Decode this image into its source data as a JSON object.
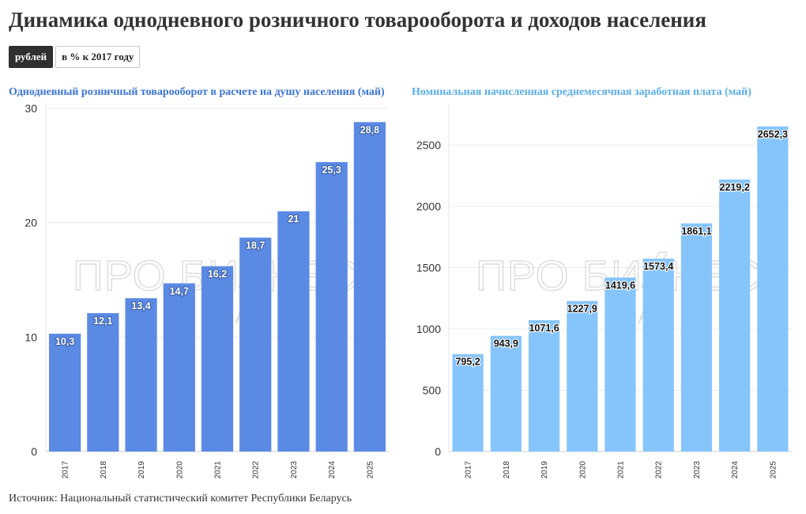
{
  "header": {
    "title": "Динамика однодневного розничного товарооборота и доходов населения"
  },
  "toggle": {
    "options": [
      "рублей",
      "в % к 2017 году"
    ],
    "selected": "рублей"
  },
  "watermark": "ПРО БИЗНЕС",
  "footer": {
    "source": "Источник: Национальный статистический комитет Республики Беларусь"
  },
  "chart_data": [
    {
      "type": "bar",
      "title": "Однодневный розничный товарооборот в расчете на душу населения (май)",
      "categories": [
        "2017",
        "2018",
        "2019",
        "2020",
        "2021",
        "2022",
        "2023",
        "2024",
        "2025"
      ],
      "values": [
        10.3,
        12.1,
        13.4,
        14.7,
        16.2,
        18.7,
        21,
        25.3,
        28.8
      ],
      "labels": [
        "10,3",
        "12,1",
        "13,4",
        "14,7",
        "16,2",
        "18,7",
        "21",
        "25,3",
        "28,8"
      ],
      "yticks": [
        0,
        10,
        20,
        30
      ],
      "ylim": [
        0,
        30
      ],
      "xlabel": "",
      "ylabel": "",
      "grid": true,
      "bar_color": "#5b8ae4",
      "title_color": "#3a74d4",
      "label_color": "#ffffff",
      "label_outline": "#3a5fa8"
    },
    {
      "type": "bar",
      "title": "Номинальная начисленная среднемесячная заработная плата (май)",
      "categories": [
        "2017",
        "2018",
        "2019",
        "2020",
        "2021",
        "2022",
        "2023",
        "2024",
        "2025"
      ],
      "values": [
        795.2,
        943.9,
        1071.6,
        1227.9,
        1419.6,
        1573.4,
        1861.1,
        2219.2,
        2652.3
      ],
      "labels": [
        "795,2",
        "943,9",
        "1071,6",
        "1227,9",
        "1419,6",
        "1573,4",
        "1861,1",
        "2219,2",
        "2652,3"
      ],
      "yticks": [
        0,
        500,
        1000,
        1500,
        2000,
        2500
      ],
      "ylim": [
        0,
        2800
      ],
      "xlabel": "",
      "ylabel": "",
      "grid": true,
      "bar_color": "#86c5fb",
      "title_color": "#5aaeea",
      "label_color": "#111111",
      "label_outline": "#ffffff"
    }
  ]
}
